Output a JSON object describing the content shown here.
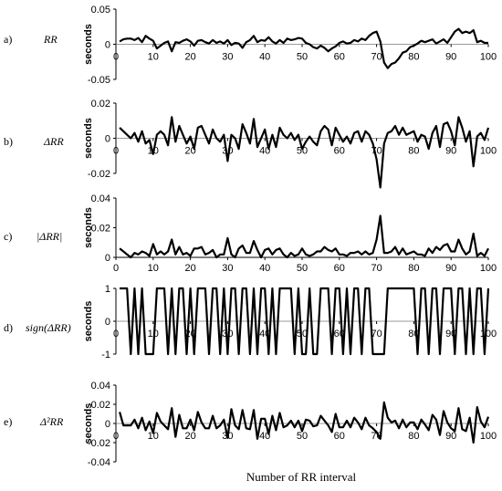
{
  "x_axis_title": "Number of RR interval",
  "chart_data": [
    {
      "type": "line",
      "panel_letter": "a)",
      "panel_label": "RR",
      "ylabel": "seconds",
      "xlim": [
        0,
        100
      ],
      "ylim": [
        -0.05,
        0.05
      ],
      "x_ticks": [
        0,
        10,
        20,
        30,
        40,
        50,
        60,
        70,
        80,
        90,
        100
      ],
      "y_ticks": [
        -0.05,
        0,
        0.05
      ],
      "y_tick_labels": [
        "-0.05",
        "0",
        "0.05"
      ],
      "x": [
        1,
        2,
        3,
        4,
        5,
        6,
        7,
        8,
        9,
        10,
        11,
        12,
        13,
        14,
        15,
        16,
        17,
        18,
        19,
        20,
        21,
        22,
        23,
        24,
        25,
        26,
        27,
        28,
        29,
        30,
        31,
        32,
        33,
        34,
        35,
        36,
        37,
        38,
        39,
        40,
        41,
        42,
        43,
        44,
        45,
        46,
        47,
        48,
        49,
        50,
        51,
        52,
        53,
        54,
        55,
        56,
        57,
        58,
        59,
        60,
        61,
        62,
        63,
        64,
        65,
        66,
        67,
        68,
        69,
        70,
        71,
        72,
        73,
        74,
        75,
        76,
        77,
        78,
        79,
        80,
        81,
        82,
        83,
        84,
        85,
        86,
        87,
        88,
        89,
        90,
        91,
        92,
        93,
        94,
        95,
        96,
        97,
        98,
        99,
        100
      ],
      "values": [
        0.004,
        0.007,
        0.008,
        0.008,
        0.006,
        0.009,
        0.003,
        0.012,
        0.008,
        0.005,
        -0.006,
        -0.002,
        0.002,
        0.004,
        -0.01,
        0.003,
        0.002,
        0.005,
        0.007,
        0.004,
        -0.002,
        0.005,
        0.006,
        0.003,
        0.001,
        0.006,
        0.002,
        0.004,
        0.001,
        0.006,
        -0.001,
        0.002,
        0.001,
        -0.005,
        0.003,
        0.006,
        0.012,
        0.003,
        0.006,
        0.005,
        0.01,
        0.004,
        0.001,
        0.006,
        0.002,
        0.008,
        0.006,
        0.007,
        0.009,
        0.008,
        0.002,
        0.0,
        -0.004,
        -0.006,
        -0.002,
        -0.005,
        -0.01,
        -0.006,
        -0.003,
        0.002,
        0.004,
        0.001,
        0.002,
        0.006,
        0.004,
        0.008,
        0.006,
        0.012,
        0.016,
        0.018,
        0.004,
        -0.026,
        -0.034,
        -0.028,
        -0.026,
        -0.02,
        -0.012,
        -0.01,
        -0.004,
        -0.002,
        0.001,
        0.005,
        0.003,
        0.005,
        0.007,
        0.001,
        0.004,
        0.007,
        0.002,
        0.01,
        0.018,
        0.022,
        0.016,
        0.018,
        0.016,
        0.02,
        0.003,
        0.005,
        0.002,
        0.002
      ]
    },
    {
      "type": "line",
      "panel_letter": "b)",
      "panel_label": "ΔRR",
      "ylabel": "seconds",
      "xlim": [
        0,
        100
      ],
      "ylim": [
        -0.02,
        0.02
      ],
      "x_ticks": [
        0,
        10,
        20,
        30,
        40,
        50,
        60,
        70,
        80,
        90,
        100
      ],
      "y_ticks": [
        -0.02,
        0,
        0.02
      ],
      "y_tick_labels": [
        "-0.02",
        "0",
        "0.02"
      ],
      "x": [
        1,
        2,
        3,
        4,
        5,
        6,
        7,
        8,
        9,
        10,
        11,
        12,
        13,
        14,
        15,
        16,
        17,
        18,
        19,
        20,
        21,
        22,
        23,
        24,
        25,
        26,
        27,
        28,
        29,
        30,
        31,
        32,
        33,
        34,
        35,
        36,
        37,
        38,
        39,
        40,
        41,
        42,
        43,
        44,
        45,
        46,
        47,
        48,
        49,
        50,
        51,
        52,
        53,
        54,
        55,
        56,
        57,
        58,
        59,
        60,
        61,
        62,
        63,
        64,
        65,
        66,
        67,
        68,
        69,
        70,
        71,
        72,
        73,
        74,
        75,
        76,
        77,
        78,
        79,
        80,
        81,
        82,
        83,
        84,
        85,
        86,
        87,
        88,
        89,
        90,
        91,
        92,
        93,
        94,
        95,
        96,
        97,
        98,
        99,
        100
      ],
      "values": [
        0.006,
        0.004,
        0.002,
        0.0,
        0.003,
        -0.002,
        0.004,
        -0.003,
        -0.001,
        -0.009,
        0.002,
        0.004,
        0.002,
        -0.004,
        0.012,
        -0.002,
        0.007,
        0.002,
        -0.003,
        0.001,
        -0.006,
        0.006,
        0.007,
        0.002,
        -0.003,
        0.005,
        0.0,
        -0.002,
        0.002,
        -0.013,
        0.002,
        0.0,
        -0.006,
        0.008,
        0.003,
        -0.003,
        0.011,
        -0.005,
        0.0,
        0.005,
        -0.006,
        0.002,
        -0.005,
        0.006,
        0.002,
        0.0,
        0.003,
        -0.001,
        0.002,
        -0.006,
        -0.002,
        0.001,
        -0.002,
        -0.004,
        0.004,
        0.007,
        0.005,
        -0.004,
        0.006,
        0.002,
        -0.002,
        0.001,
        -0.003,
        0.003,
        0.004,
        -0.002,
        0.004,
        0.002,
        -0.003,
        -0.012,
        -0.028,
        -0.003,
        0.003,
        0.004,
        0.007,
        0.002,
        0.006,
        0.002,
        0.003,
        0.004,
        -0.002,
        0.002,
        0.001,
        -0.006,
        0.003,
        0.007,
        -0.005,
        0.008,
        0.009,
        0.004,
        -0.004,
        0.012,
        0.006,
        -0.002,
        0.004,
        -0.016,
        0.001,
        0.003,
        -0.001,
        0.006
      ]
    },
    {
      "type": "line",
      "panel_letter": "c)",
      "panel_label": "|ΔRR|",
      "ylabel": "seconds",
      "xlim": [
        0,
        100
      ],
      "ylim": [
        0,
        0.04
      ],
      "x_ticks": [
        0,
        10,
        20,
        30,
        40,
        50,
        60,
        70,
        80,
        90,
        100
      ],
      "y_ticks": [
        0,
        0.02,
        0.04
      ],
      "y_tick_labels": [
        "0",
        "0.02",
        "0.04"
      ],
      "x": [
        1,
        2,
        3,
        4,
        5,
        6,
        7,
        8,
        9,
        10,
        11,
        12,
        13,
        14,
        15,
        16,
        17,
        18,
        19,
        20,
        21,
        22,
        23,
        24,
        25,
        26,
        27,
        28,
        29,
        30,
        31,
        32,
        33,
        34,
        35,
        36,
        37,
        38,
        39,
        40,
        41,
        42,
        43,
        44,
        45,
        46,
        47,
        48,
        49,
        50,
        51,
        52,
        53,
        54,
        55,
        56,
        57,
        58,
        59,
        60,
        61,
        62,
        63,
        64,
        65,
        66,
        67,
        68,
        69,
        70,
        71,
        72,
        73,
        74,
        75,
        76,
        77,
        78,
        79,
        80,
        81,
        82,
        83,
        84,
        85,
        86,
        87,
        88,
        89,
        90,
        91,
        92,
        93,
        94,
        95,
        96,
        97,
        98,
        99,
        100
      ],
      "values": [
        0.006,
        0.004,
        0.002,
        0.0,
        0.003,
        0.002,
        0.004,
        0.003,
        0.001,
        0.009,
        0.002,
        0.004,
        0.002,
        0.004,
        0.012,
        0.002,
        0.007,
        0.002,
        0.003,
        0.001,
        0.006,
        0.006,
        0.007,
        0.002,
        0.003,
        0.005,
        0.0,
        0.002,
        0.002,
        0.013,
        0.002,
        0.0,
        0.006,
        0.008,
        0.003,
        0.003,
        0.011,
        0.005,
        0.0,
        0.005,
        0.006,
        0.002,
        0.005,
        0.006,
        0.002,
        0.0,
        0.003,
        0.001,
        0.002,
        0.006,
        0.002,
        0.001,
        0.002,
        0.004,
        0.004,
        0.007,
        0.005,
        0.004,
        0.006,
        0.002,
        0.002,
        0.001,
        0.003,
        0.003,
        0.004,
        0.002,
        0.004,
        0.002,
        0.003,
        0.012,
        0.028,
        0.003,
        0.003,
        0.004,
        0.007,
        0.002,
        0.006,
        0.002,
        0.003,
        0.004,
        0.002,
        0.002,
        0.001,
        0.006,
        0.003,
        0.007,
        0.005,
        0.008,
        0.009,
        0.004,
        0.004,
        0.012,
        0.006,
        0.002,
        0.004,
        0.016,
        0.001,
        0.003,
        0.001,
        0.006
      ]
    },
    {
      "type": "line",
      "panel_letter": "d)",
      "panel_label": "sign(ΔRR)",
      "ylabel": "seconds",
      "xlim": [
        0,
        100
      ],
      "ylim": [
        -1,
        1
      ],
      "x_ticks": [
        0,
        10,
        20,
        30,
        40,
        50,
        60,
        70,
        80,
        90,
        100
      ],
      "y_ticks": [
        -1,
        0,
        1
      ],
      "y_tick_labels": [
        "-1",
        "0",
        "1"
      ],
      "x": [
        1,
        2,
        3,
        4,
        5,
        6,
        7,
        8,
        9,
        10,
        11,
        12,
        13,
        14,
        15,
        16,
        17,
        18,
        19,
        20,
        21,
        22,
        23,
        24,
        25,
        26,
        27,
        28,
        29,
        30,
        31,
        32,
        33,
        34,
        35,
        36,
        37,
        38,
        39,
        40,
        41,
        42,
        43,
        44,
        45,
        46,
        47,
        48,
        49,
        50,
        51,
        52,
        53,
        54,
        55,
        56,
        57,
        58,
        59,
        60,
        61,
        62,
        63,
        64,
        65,
        66,
        67,
        68,
        69,
        70,
        71,
        72,
        73,
        74,
        75,
        76,
        77,
        78,
        79,
        80,
        81,
        82,
        83,
        84,
        85,
        86,
        87,
        88,
        89,
        90,
        91,
        92,
        93,
        94,
        95,
        96,
        97,
        98,
        99,
        100
      ],
      "values": [
        1,
        1,
        1,
        -1,
        1,
        -1,
        1,
        -1,
        -1,
        -1,
        1,
        1,
        1,
        -1,
        1,
        -1,
        1,
        1,
        -1,
        1,
        -1,
        1,
        1,
        1,
        -1,
        1,
        1,
        -1,
        1,
        -1,
        1,
        1,
        -1,
        1,
        1,
        -1,
        1,
        -1,
        1,
        1,
        -1,
        1,
        -1,
        1,
        1,
        1,
        1,
        -1,
        1,
        -1,
        -1,
        1,
        -1,
        -1,
        1,
        1,
        1,
        -1,
        1,
        1,
        -1,
        1,
        -1,
        1,
        1,
        -1,
        1,
        1,
        -1,
        -1,
        -1,
        -1,
        1,
        1,
        1,
        1,
        1,
        1,
        1,
        1,
        -1,
        1,
        1,
        -1,
        1,
        1,
        -1,
        1,
        1,
        1,
        -1,
        1,
        1,
        -1,
        1,
        -1,
        1,
        1,
        -1,
        1
      ]
    },
    {
      "type": "line",
      "panel_letter": "e)",
      "panel_label": "Δ²RR",
      "ylabel": "seconds",
      "xlim": [
        0,
        100
      ],
      "ylim": [
        -0.04,
        0.04
      ],
      "x_ticks": [
        0,
        10,
        20,
        30,
        40,
        50,
        60,
        70,
        80,
        90,
        100
      ],
      "y_ticks": [
        -0.04,
        -0.02,
        0,
        0.02,
        0.04
      ],
      "y_tick_labels": [
        "-0.04",
        "-0.02",
        "0",
        "0.02",
        "0.04"
      ],
      "x": [
        1,
        2,
        3,
        4,
        5,
        6,
        7,
        8,
        9,
        10,
        11,
        12,
        13,
        14,
        15,
        16,
        17,
        18,
        19,
        20,
        21,
        22,
        23,
        24,
        25,
        26,
        27,
        28,
        29,
        30,
        31,
        32,
        33,
        34,
        35,
        36,
        37,
        38,
        39,
        40,
        41,
        42,
        43,
        44,
        45,
        46,
        47,
        48,
        49,
        50,
        51,
        52,
        53,
        54,
        55,
        56,
        57,
        58,
        59,
        60,
        61,
        62,
        63,
        64,
        65,
        66,
        67,
        68,
        69,
        70,
        71,
        72,
        73,
        74,
        75,
        76,
        77,
        78,
        79,
        80,
        81,
        82,
        83,
        84,
        85,
        86,
        87,
        88,
        89,
        90,
        91,
        92,
        93,
        94,
        95,
        96,
        97,
        98,
        99,
        100
      ],
      "values": [
        0.012,
        -0.002,
        -0.002,
        -0.002,
        0.004,
        -0.005,
        0.006,
        -0.007,
        0.002,
        -0.01,
        0.011,
        0.002,
        -0.002,
        -0.006,
        0.016,
        -0.014,
        0.009,
        -0.005,
        -0.005,
        0.004,
        -0.007,
        0.012,
        0.001,
        -0.005,
        -0.005,
        0.008,
        -0.005,
        -0.002,
        0.004,
        -0.015,
        0.015,
        -0.002,
        -0.006,
        0.014,
        -0.005,
        -0.006,
        0.014,
        -0.016,
        0.005,
        0.005,
        -0.011,
        0.008,
        -0.007,
        0.011,
        -0.004,
        -0.002,
        0.003,
        -0.004,
        0.003,
        -0.008,
        0.004,
        0.003,
        -0.003,
        -0.002,
        0.008,
        0.003,
        -0.002,
        -0.009,
        0.01,
        -0.004,
        -0.004,
        0.003,
        -0.004,
        0.006,
        0.001,
        -0.006,
        0.006,
        -0.002,
        -0.005,
        -0.009,
        -0.016,
        0.022,
        0.006,
        0.001,
        0.003,
        -0.005,
        0.004,
        -0.004,
        0.001,
        0.001,
        -0.006,
        0.004,
        -0.001,
        -0.007,
        0.009,
        0.004,
        -0.012,
        0.013,
        0.001,
        -0.005,
        -0.008,
        0.016,
        -0.006,
        -0.008,
        0.006,
        -0.02,
        0.017,
        0.002,
        -0.004,
        0.007
      ]
    }
  ]
}
